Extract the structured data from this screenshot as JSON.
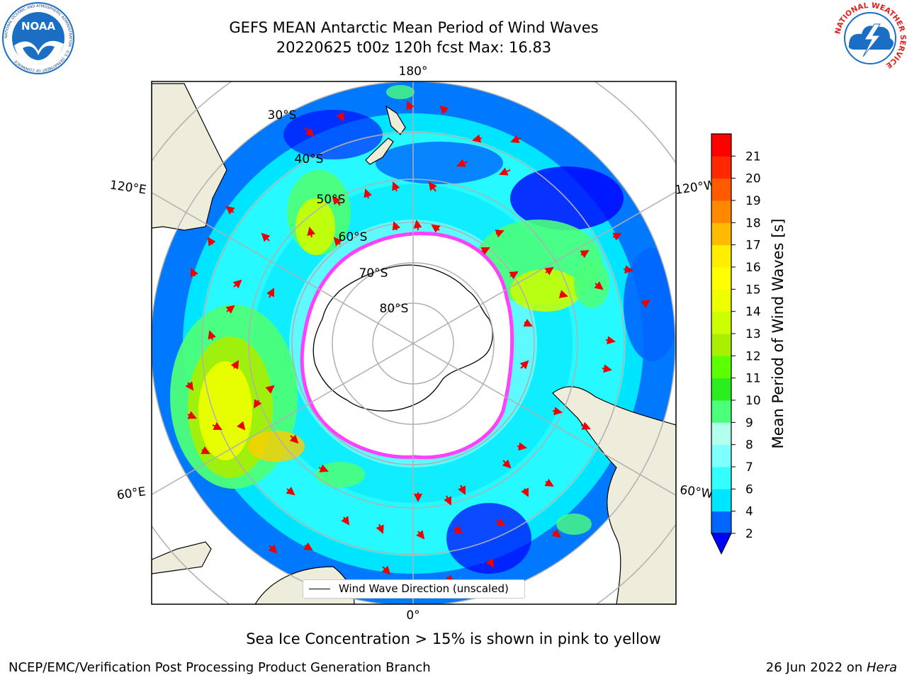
{
  "title": {
    "line1": "GEFS MEAN Antarctic Mean Period of Wind Waves",
    "line2": "20220625 t00z 120h fcst   Max: 16.83"
  },
  "logos": {
    "noaa": {
      "text": "NOAA",
      "ring_text": "NATIONAL OCEANIC AND ATMOSPHERIC ADMINISTRATION · U.S. DEPARTMENT OF COMMERCE",
      "color": "#1a6fc4"
    },
    "nws": {
      "ring_text": "NATIONAL WEATHER SERVICE",
      "color": "#e02020"
    }
  },
  "map": {
    "projection": "south polar stereographic",
    "longitude_labels": {
      "top": "180°",
      "bottom": "0°",
      "upper_left": "120°E",
      "upper_right": "120°W",
      "lower_left": "60°E",
      "lower_right": "60°W"
    },
    "latitude_labels": [
      "30°S",
      "40°S",
      "50°S",
      "60°S",
      "70°S",
      "80°S"
    ],
    "colors": {
      "land": "#eeecdb",
      "ice_edge": "#ff40ff",
      "grid": "#b0b0b0",
      "arrow": "#ee0000"
    }
  },
  "colorbar": {
    "label": "Mean Period of Wind Waves [s]",
    "ticks": [
      "2",
      "4",
      "6",
      "7",
      "8",
      "9",
      "10",
      "11",
      "12",
      "13",
      "14",
      "15",
      "16",
      "17",
      "18",
      "19",
      "20",
      "21"
    ],
    "colors": [
      "#0066ff",
      "#00e5ff",
      "#33ffff",
      "#80ffff",
      "#b3ffee",
      "#4cff7a",
      "#2aee20",
      "#5cff00",
      "#aaee00",
      "#ccff00",
      "#eeff00",
      "#ffff00",
      "#ffee00",
      "#ffbb00",
      "#ff8800",
      "#ff5a00",
      "#ff2800",
      "#ff0000"
    ],
    "under_color": "#0000ff"
  },
  "legend": {
    "label": "Wind Wave Direction (unscaled)"
  },
  "note": "Sea Ice Concentration > 15% is shown in pink to yellow",
  "footer": {
    "left": "NCEP/EMC/Verification Post Processing Product Generation Branch",
    "date": "26 Jun 2022 on ",
    "machine": "Hera"
  }
}
